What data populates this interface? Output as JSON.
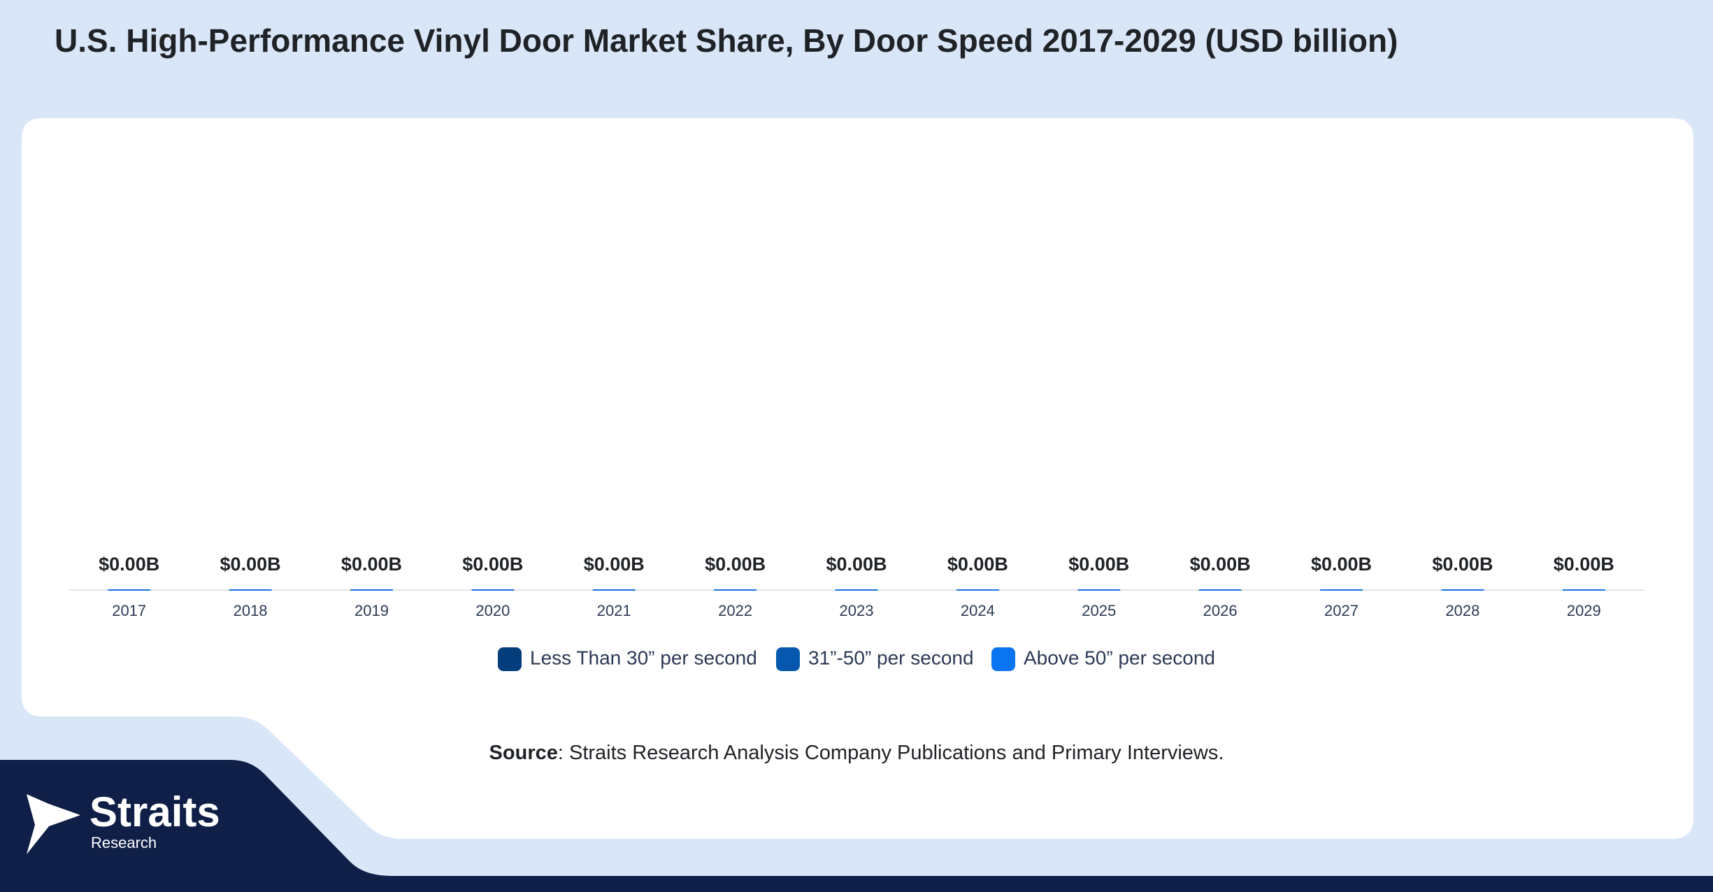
{
  "chart_data": {
    "type": "stacked_bar",
    "title": "U.S. High-Performance Vinyl Door Market Share, By Door Speed 2017-2029 (USD billion)",
    "categories": [
      "2017",
      "2018",
      "2019",
      "2020",
      "2021",
      "2022",
      "2023",
      "2024",
      "2025",
      "2026",
      "2027",
      "2028",
      "2029"
    ],
    "series": [
      {
        "name": "Less Than 30” per second",
        "color": "#033d7c",
        "values": [
          0,
          0,
          0,
          0,
          0,
          0,
          0,
          0,
          0,
          0,
          0,
          0,
          0
        ]
      },
      {
        "name": "31”-50” per second",
        "color": "#0558ae",
        "values": [
          0,
          0,
          0,
          0,
          0,
          0,
          0,
          0,
          0,
          0,
          0,
          0,
          0
        ]
      },
      {
        "name": "Above 50” per second",
        "color": "#0b74f0",
        "values": [
          0,
          0,
          0,
          0,
          0,
          0,
          0,
          0,
          0,
          0,
          0,
          0,
          0
        ],
        "value_labels": [
          "$0.00B",
          "$0.00B",
          "$0.00B",
          "$0.00B",
          "$0.00B",
          "$0.00B",
          "$0.00B",
          "$0.00B",
          "$0.00B",
          "$0.00B",
          "$0.00B",
          "$0.00B",
          "$0.00B"
        ]
      }
    ]
  },
  "source": {
    "label": "Source",
    "text": ": Straits Research Analysis Company Publications and Primary Interviews."
  },
  "logo": {
    "name": "Straits",
    "sub": "Research"
  }
}
